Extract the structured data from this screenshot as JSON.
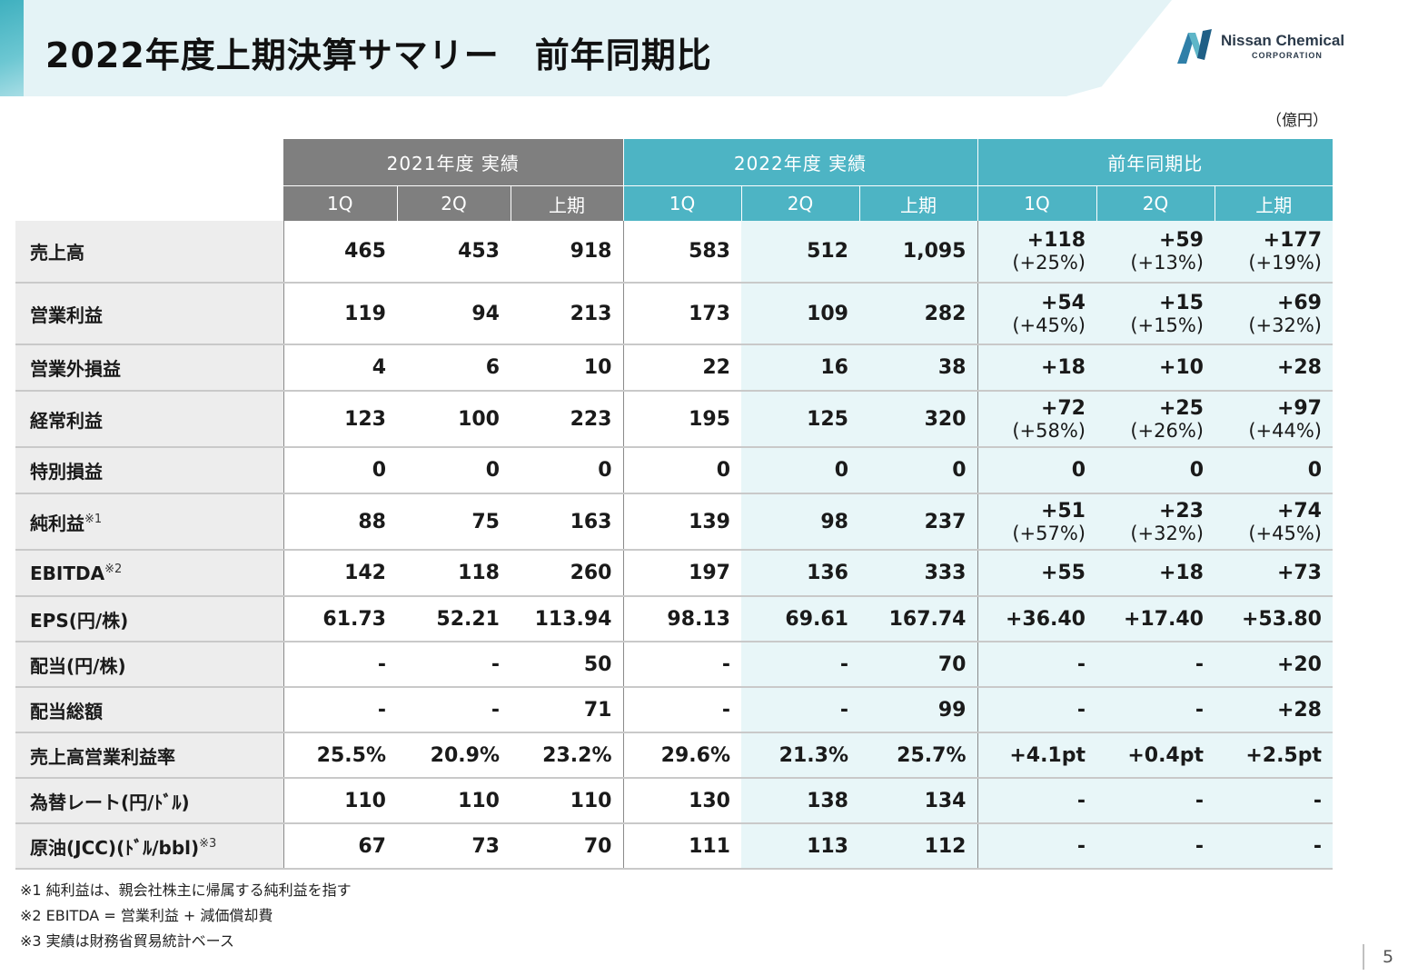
{
  "title": "2022年度上期決算サマリー　前年同期比",
  "logo": {
    "name": "Nissan Chemical",
    "sub": "CORPORATION"
  },
  "unit": "（億円）",
  "groups": {
    "g2021": "2021年度  実績",
    "g2022": "2022年度  実績",
    "yoy": "前年同期比"
  },
  "sub_headers": [
    "1Q",
    "2Q",
    "上期",
    "1Q",
    "2Q",
    "上期",
    "1Q",
    "2Q",
    "上期"
  ],
  "rows": [
    {
      "label": "売上高",
      "note": "",
      "v2021": [
        "465",
        "453",
        "918"
      ],
      "v2022": [
        "583",
        "512",
        "1,095"
      ],
      "yoy": [
        "+118",
        "+59",
        "+177"
      ],
      "yoy_pct": [
        "(+25%)",
        "(+13%)",
        "(+19%)"
      ]
    },
    {
      "label": "営業利益",
      "note": "",
      "v2021": [
        "119",
        "94",
        "213"
      ],
      "v2022": [
        "173",
        "109",
        "282"
      ],
      "yoy": [
        "+54",
        "+15",
        "+69"
      ],
      "yoy_pct": [
        "(+45%)",
        "(+15%)",
        "(+32%)"
      ]
    },
    {
      "label": "営業外損益",
      "note": "",
      "v2021": [
        "4",
        "6",
        "10"
      ],
      "v2022": [
        "22",
        "16",
        "38"
      ],
      "yoy": [
        "+18",
        "+10",
        "+28"
      ],
      "yoy_pct": [
        "",
        "",
        ""
      ]
    },
    {
      "label": "経常利益",
      "note": "",
      "v2021": [
        "123",
        "100",
        "223"
      ],
      "v2022": [
        "195",
        "125",
        "320"
      ],
      "yoy": [
        "+72",
        "+25",
        "+97"
      ],
      "yoy_pct": [
        "(+58%)",
        "(+26%)",
        "(+44%)"
      ]
    },
    {
      "label": "特別損益",
      "note": "",
      "v2021": [
        "0",
        "0",
        "0"
      ],
      "v2022": [
        "0",
        "0",
        "0"
      ],
      "yoy": [
        "0",
        "0",
        "0"
      ],
      "yoy_pct": [
        "",
        "",
        ""
      ]
    },
    {
      "label": "純利益",
      "note": "※1",
      "v2021": [
        "88",
        "75",
        "163"
      ],
      "v2022": [
        "139",
        "98",
        "237"
      ],
      "yoy": [
        "+51",
        "+23",
        "+74"
      ],
      "yoy_pct": [
        "(+57%)",
        "(+32%)",
        "(+45%)"
      ]
    },
    {
      "label": "EBITDA",
      "note": "※2",
      "v2021": [
        "142",
        "118",
        "260"
      ],
      "v2022": [
        "197",
        "136",
        "333"
      ],
      "yoy": [
        "+55",
        "+18",
        "+73"
      ],
      "yoy_pct": [
        "",
        "",
        ""
      ]
    },
    {
      "label": "EPS(円/株)",
      "note": "",
      "v2021": [
        "61.73",
        "52.21",
        "113.94"
      ],
      "v2022": [
        "98.13",
        "69.61",
        "167.74"
      ],
      "yoy": [
        "+36.40",
        "+17.40",
        "+53.80"
      ],
      "yoy_pct": [
        "",
        "",
        ""
      ]
    },
    {
      "label": "配当(円/株)",
      "note": "",
      "v2021": [
        "-",
        "-",
        "50"
      ],
      "v2022": [
        "-",
        "-",
        "70"
      ],
      "yoy": [
        "-",
        "-",
        "+20"
      ],
      "yoy_pct": [
        "",
        "",
        ""
      ]
    },
    {
      "label": "配当総額",
      "note": "",
      "v2021": [
        "-",
        "-",
        "71"
      ],
      "v2022": [
        "-",
        "-",
        "99"
      ],
      "yoy": [
        "-",
        "-",
        "+28"
      ],
      "yoy_pct": [
        "",
        "",
        ""
      ]
    },
    {
      "label": "売上高営業利益率",
      "note": "",
      "v2021": [
        "25.5%",
        "20.9%",
        "23.2%"
      ],
      "v2022": [
        "29.6%",
        "21.3%",
        "25.7%"
      ],
      "yoy": [
        "+4.1pt",
        "+0.4pt",
        "+2.5pt"
      ],
      "yoy_pct": [
        "",
        "",
        ""
      ]
    },
    {
      "label": "為替レート(円/ﾄﾞﾙ)",
      "note": "",
      "v2021": [
        "110",
        "110",
        "110"
      ],
      "v2022": [
        "130",
        "138",
        "134"
      ],
      "yoy": [
        "-",
        "-",
        "-"
      ],
      "yoy_pct": [
        "",
        "",
        ""
      ]
    },
    {
      "label": "原油(JCC)(ﾄﾞﾙ/bbl)",
      "note": "※3",
      "v2021": [
        "67",
        "73",
        "70"
      ],
      "v2022": [
        "111",
        "113",
        "112"
      ],
      "yoy": [
        "-",
        "-",
        "-"
      ],
      "yoy_pct": [
        "",
        "",
        ""
      ]
    }
  ],
  "footnotes": [
    "※1  純利益は、親会社株主に帰属する純利益を指す",
    "※2  EBITDA = 営業利益 + 減価償却費",
    "※3  実績は財務省貿易統計ベース"
  ],
  "page_number": "5",
  "colors": {
    "header_band": "#e4f3f6",
    "accent_teal": "#4db4c4",
    "gray_header": "#7f7f7f",
    "tint": "#e8f6f8",
    "label_bg": "#ededed"
  }
}
